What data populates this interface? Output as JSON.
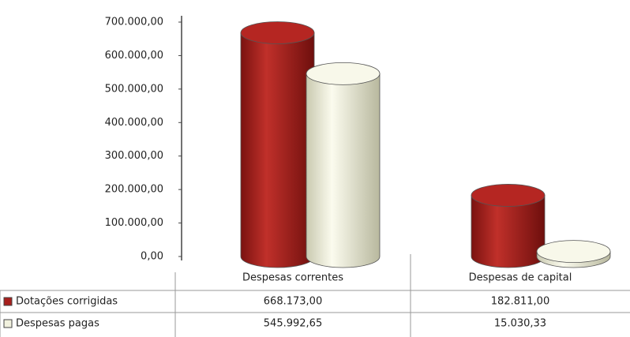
{
  "chart_data": {
    "type": "cylinder",
    "categories": [
      "Despesas correntes",
      "Despesas de capital"
    ],
    "series": [
      {
        "name": "Dotações corrigidas",
        "color": "#a8201d",
        "values": [
          668173.0,
          182811.0
        ],
        "value_labels": [
          "668.173,00",
          "182.811,00"
        ]
      },
      {
        "name": "Despesas pagas",
        "color": "#f1f1de",
        "values": [
          545992.65,
          15030.33
        ],
        "value_labels": [
          "545.992,65",
          "15.030,33"
        ]
      }
    ],
    "ylim": [
      0,
      700000
    ],
    "yticks": [
      {
        "value": 0,
        "label": "0,00"
      },
      {
        "value": 100000,
        "label": "100.000,00"
      },
      {
        "value": 200000,
        "label": "200.000,00"
      },
      {
        "value": 300000,
        "label": "300.000,00"
      },
      {
        "value": 400000,
        "label": "400.000,00"
      },
      {
        "value": 500000,
        "label": "500.000,00"
      },
      {
        "value": 600000,
        "label": "600.000,00"
      },
      {
        "value": 700000,
        "label": "700.000,00"
      }
    ]
  }
}
